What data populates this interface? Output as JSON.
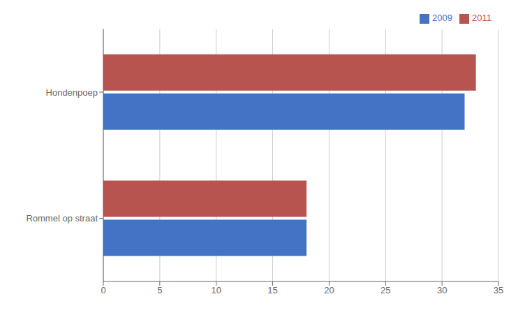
{
  "chart_data": {
    "type": "bar",
    "orientation": "horizontal",
    "categories": [
      "Hondenpoep",
      "Rommel op straat"
    ],
    "series": [
      {
        "name": "2011",
        "color": "#b85450",
        "values": [
          33,
          18
        ]
      },
      {
        "name": "2009",
        "color": "#4472c4",
        "values": [
          32,
          18
        ]
      }
    ],
    "xlim": [
      0,
      35
    ],
    "xticks": [
      0,
      5,
      10,
      15,
      20,
      25,
      30,
      35
    ],
    "grid": true,
    "legend": "upper right"
  }
}
